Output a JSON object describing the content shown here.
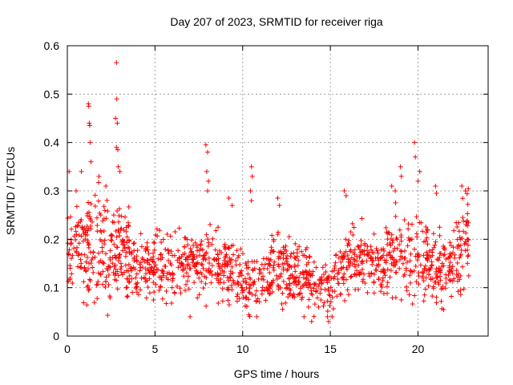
{
  "chart_data": {
    "type": "scatter",
    "title": "Day 207 of 2023, SRMTID for receiver riga",
    "xlabel": "GPS time / hours",
    "ylabel": "SRMTID / TECUs",
    "xlim": [
      0,
      24
    ],
    "ylim": [
      0,
      0.6
    ],
    "xticks": [
      0,
      5,
      10,
      15,
      20
    ],
    "xtick_labels": [
      "0",
      "5",
      "10",
      "15",
      "20"
    ],
    "yticks": [
      0,
      0.1,
      0.2,
      0.3,
      0.4,
      0.5,
      0.6
    ],
    "ytick_labels": [
      "0",
      "0.1",
      "0.2",
      "0.3",
      "0.4",
      "0.5",
      "0.6"
    ],
    "grid": true,
    "marker": "plus",
    "series": [
      {
        "name": "SRMTID",
        "color": "#ff0000",
        "envelope_hours": [
          0,
          1,
          2,
          3,
          4,
          5,
          6,
          7,
          8,
          9,
          10,
          11,
          12,
          13,
          14,
          15,
          16,
          17,
          18,
          19,
          20,
          21,
          22,
          22.9
        ],
        "envelope_median": [
          0.19,
          0.18,
          0.17,
          0.17,
          0.14,
          0.15,
          0.14,
          0.15,
          0.16,
          0.15,
          0.11,
          0.11,
          0.14,
          0.13,
          0.11,
          0.1,
          0.16,
          0.16,
          0.15,
          0.19,
          0.16,
          0.14,
          0.15,
          0.19
        ],
        "envelope_spread": [
          0.08,
          0.08,
          0.1,
          0.09,
          0.06,
          0.06,
          0.06,
          0.06,
          0.07,
          0.07,
          0.05,
          0.05,
          0.06,
          0.06,
          0.05,
          0.05,
          0.06,
          0.06,
          0.06,
          0.09,
          0.07,
          0.06,
          0.07,
          0.08
        ],
        "outliers": [
          {
            "x": 0.1,
            "y": 0.34
          },
          {
            "x": 0.5,
            "y": 0.3
          },
          {
            "x": 0.8,
            "y": 0.34
          },
          {
            "x": 1.2,
            "y": 0.48
          },
          {
            "x": 1.22,
            "y": 0.475
          },
          {
            "x": 1.25,
            "y": 0.44
          },
          {
            "x": 1.28,
            "y": 0.435
          },
          {
            "x": 1.3,
            "y": 0.4
          },
          {
            "x": 1.35,
            "y": 0.36
          },
          {
            "x": 1.8,
            "y": 0.33
          },
          {
            "x": 2.2,
            "y": 0.31
          },
          {
            "x": 2.8,
            "y": 0.565
          },
          {
            "x": 2.82,
            "y": 0.49
          },
          {
            "x": 2.75,
            "y": 0.45
          },
          {
            "x": 2.85,
            "y": 0.44
          },
          {
            "x": 2.8,
            "y": 0.39
          },
          {
            "x": 2.88,
            "y": 0.385
          },
          {
            "x": 2.9,
            "y": 0.35
          },
          {
            "x": 3.0,
            "y": 0.34
          },
          {
            "x": 7.9,
            "y": 0.395
          },
          {
            "x": 8.0,
            "y": 0.38
          },
          {
            "x": 7.95,
            "y": 0.34
          },
          {
            "x": 8.05,
            "y": 0.32
          },
          {
            "x": 8.0,
            "y": 0.3
          },
          {
            "x": 9.2,
            "y": 0.285
          },
          {
            "x": 9.4,
            "y": 0.27
          },
          {
            "x": 10.5,
            "y": 0.35
          },
          {
            "x": 10.55,
            "y": 0.33
          },
          {
            "x": 10.45,
            "y": 0.3
          },
          {
            "x": 10.5,
            "y": 0.28
          },
          {
            "x": 12.0,
            "y": 0.285
          },
          {
            "x": 12.1,
            "y": 0.27
          },
          {
            "x": 15.8,
            "y": 0.3
          },
          {
            "x": 15.9,
            "y": 0.29
          },
          {
            "x": 18.5,
            "y": 0.31
          },
          {
            "x": 18.7,
            "y": 0.3
          },
          {
            "x": 19.0,
            "y": 0.35
          },
          {
            "x": 19.05,
            "y": 0.33
          },
          {
            "x": 19.8,
            "y": 0.4
          },
          {
            "x": 19.85,
            "y": 0.37
          },
          {
            "x": 20.1,
            "y": 0.34
          },
          {
            "x": 20.0,
            "y": 0.32
          },
          {
            "x": 21.0,
            "y": 0.31
          },
          {
            "x": 21.05,
            "y": 0.295
          },
          {
            "x": 22.5,
            "y": 0.31
          },
          {
            "x": 22.7,
            "y": 0.3
          },
          {
            "x": 14.9,
            "y": 0.03
          },
          {
            "x": 15.1,
            "y": 0.04
          },
          {
            "x": 10.8,
            "y": 0.04
          },
          {
            "x": 13.5,
            "y": 0.04
          },
          {
            "x": 7.0,
            "y": 0.04
          }
        ],
        "n_points": 1400
      }
    ]
  }
}
